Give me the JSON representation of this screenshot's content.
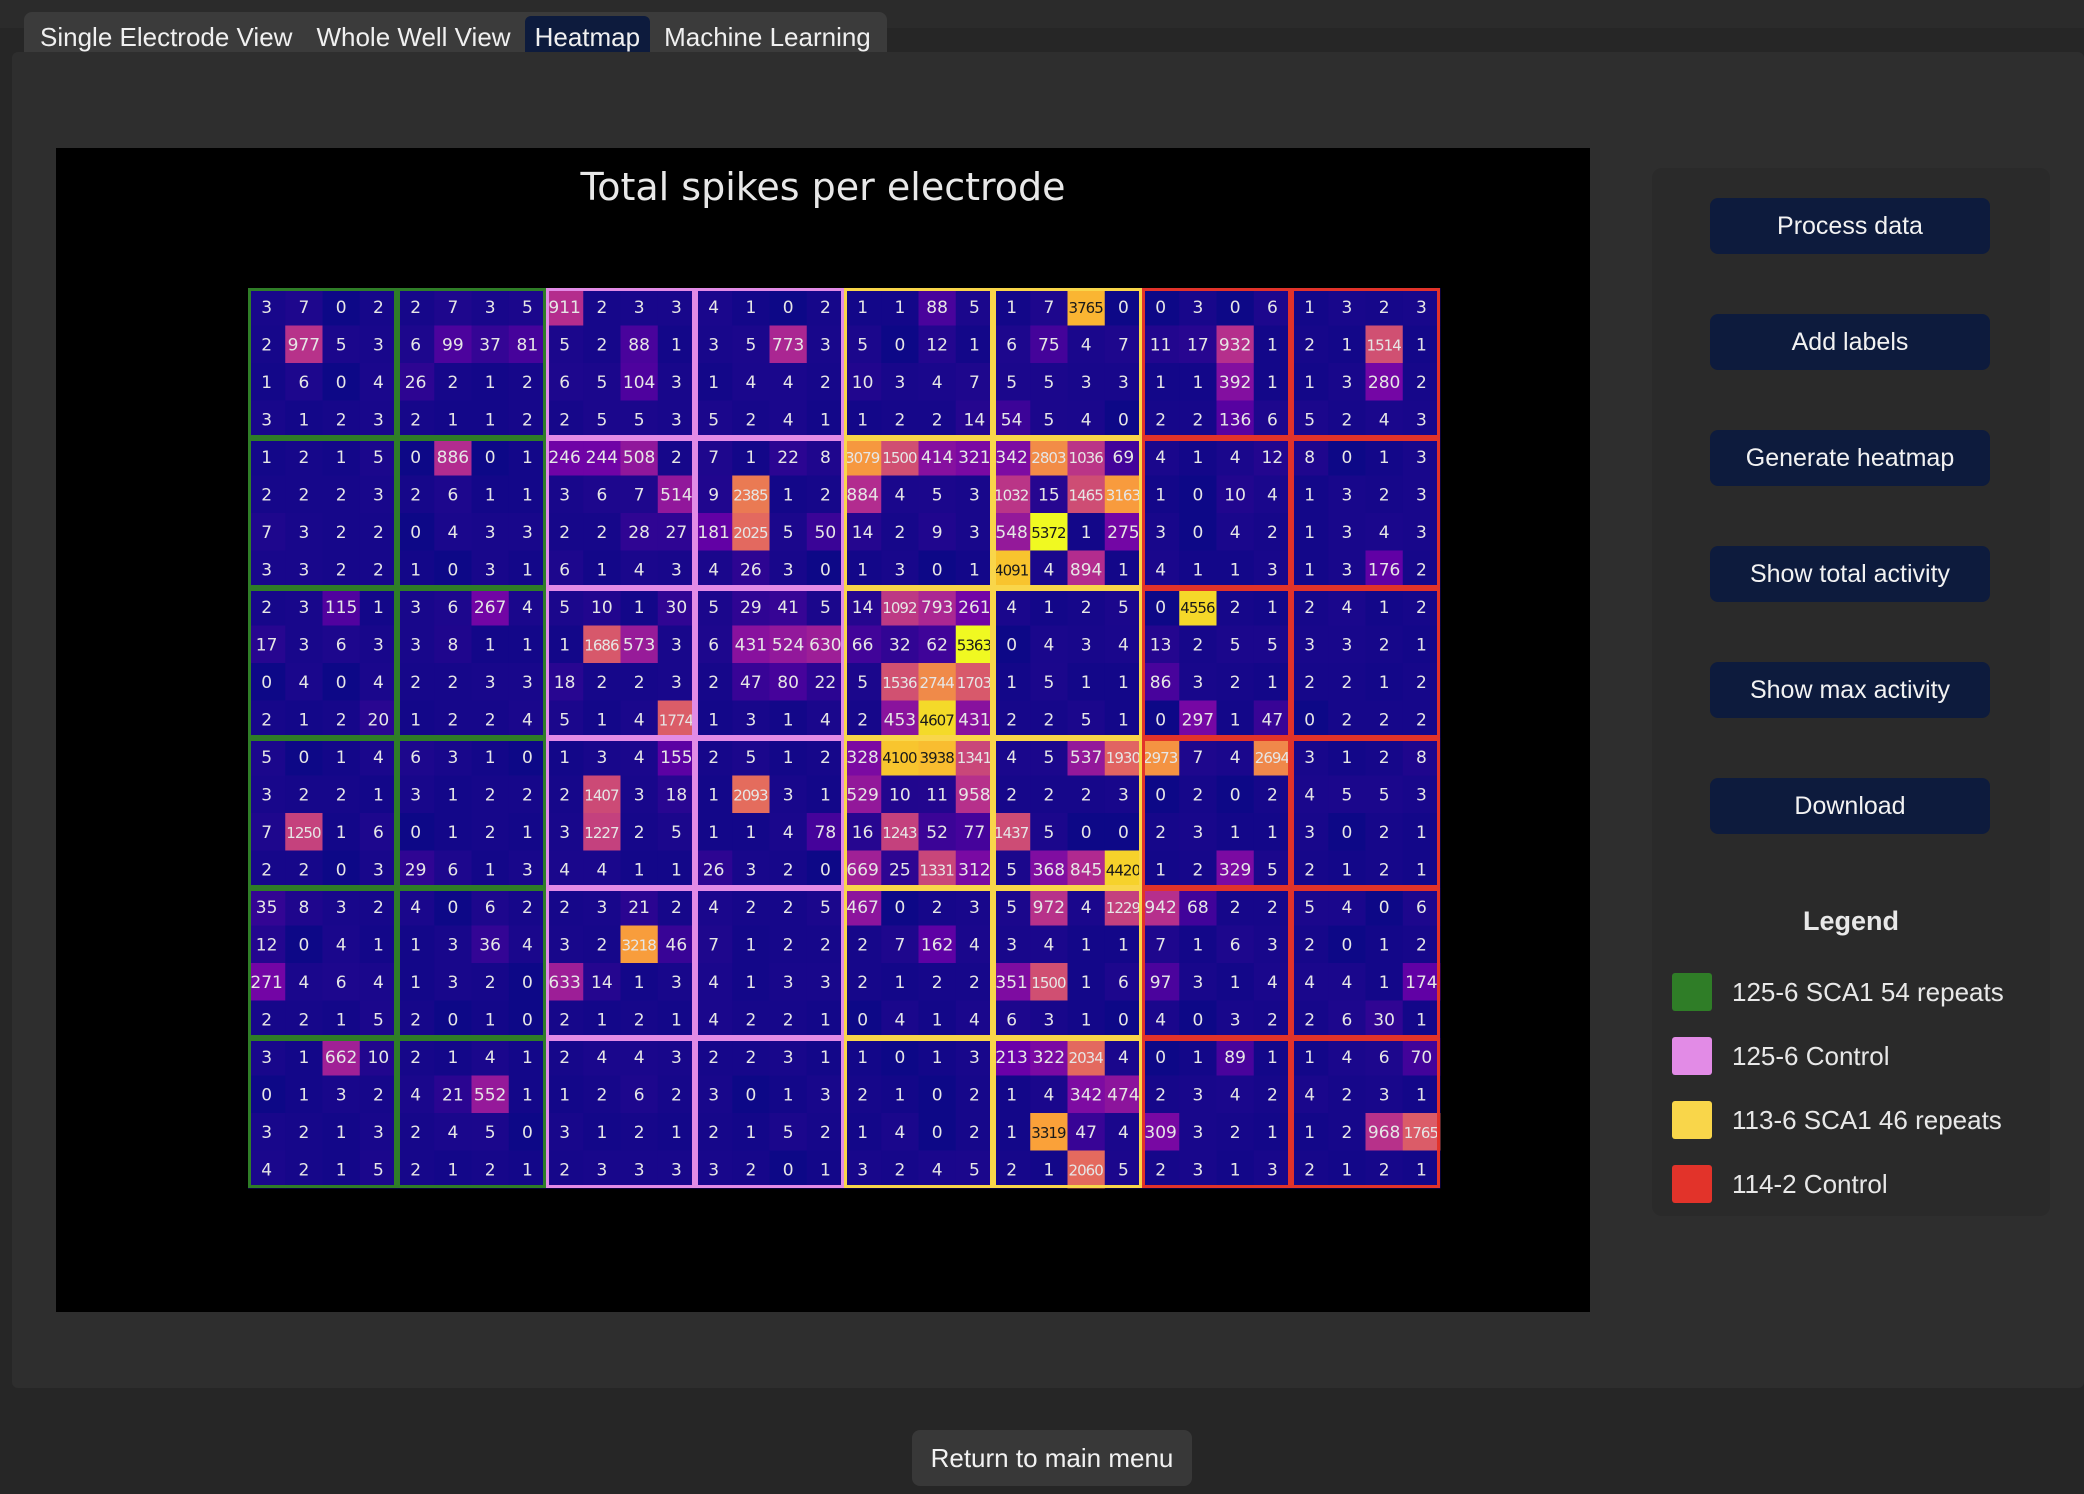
{
  "tabs": [
    {
      "label": "Single Electrode View",
      "active": false
    },
    {
      "label": "Whole Well View",
      "active": false
    },
    {
      "label": "Heatmap",
      "active": true
    },
    {
      "label": "Machine Learning",
      "active": false
    }
  ],
  "buttons": {
    "process": "Process data",
    "add_labels": "Add labels",
    "generate": "Generate heatmap",
    "total": "Show total activity",
    "max": "Show max activity",
    "download": "Download"
  },
  "legend": {
    "title": "Legend",
    "items": [
      {
        "label": "125-6 SCA1 54 repeats",
        "color": "#2f7d27"
      },
      {
        "label": "125-6 Control",
        "color": "#e28be6"
      },
      {
        "label": "113-6 SCA1 46 repeats",
        "color": "#f9d64a"
      },
      {
        "label": "114-2 Control",
        "color": "#e2332a"
      }
    ]
  },
  "return_button": "Return to main menu",
  "chart_data": {
    "type": "heatmap",
    "title": "Total spikes per electrode",
    "color_scale": {
      "min": 0,
      "max": 5372,
      "colors": [
        "#0d0887",
        "#6a00a8",
        "#b12a90",
        "#e16462",
        "#fca636",
        "#f0f921"
      ]
    },
    "well_grid": {
      "rows": 6,
      "cols": 8,
      "electrodes_per_well": [
        4,
        4
      ]
    },
    "column_groups": [
      {
        "group": "125-6 SCA1 54 repeats",
        "color": "#2f7d27"
      },
      {
        "group": "125-6 SCA1 54 repeats",
        "color": "#2f7d27"
      },
      {
        "group": "125-6 Control",
        "color": "#e28be6"
      },
      {
        "group": "125-6 Control",
        "color": "#e28be6"
      },
      {
        "group": "113-6 SCA1 46 repeats",
        "color": "#f9d64a"
      },
      {
        "group": "113-6 SCA1 46 repeats",
        "color": "#f9d64a"
      },
      {
        "group": "114-2 Control",
        "color": "#e2332a"
      },
      {
        "group": "114-2 Control",
        "color": "#e2332a"
      }
    ],
    "values": [
      [
        3,
        7,
        0,
        2,
        2,
        7,
        3,
        5,
        911,
        2,
        3,
        3,
        4,
        1,
        0,
        2,
        1,
        1,
        88,
        5,
        1,
        7,
        3765,
        0,
        0,
        3,
        0,
        6,
        1,
        3,
        2,
        3
      ],
      [
        2,
        977,
        5,
        3,
        6,
        99,
        37,
        81,
        5,
        2,
        88,
        1,
        3,
        5,
        773,
        3,
        5,
        0,
        12,
        1,
        6,
        75,
        4,
        7,
        11,
        17,
        932,
        1,
        2,
        1,
        1514,
        1
      ],
      [
        1,
        6,
        0,
        4,
        26,
        2,
        1,
        2,
        6,
        5,
        104,
        3,
        1,
        4,
        4,
        2,
        10,
        3,
        4,
        7,
        5,
        5,
        3,
        3,
        1,
        1,
        392,
        1,
        1,
        3,
        280,
        2
      ],
      [
        3,
        1,
        2,
        3,
        2,
        1,
        1,
        2,
        2,
        5,
        5,
        3,
        5,
        2,
        4,
        1,
        1,
        2,
        2,
        14,
        54,
        5,
        4,
        0,
        2,
        2,
        136,
        6,
        5,
        2,
        4,
        3
      ],
      [
        1,
        2,
        1,
        5,
        0,
        886,
        0,
        1,
        246,
        244,
        508,
        2,
        7,
        1,
        22,
        8,
        3079,
        1500,
        414,
        321,
        342,
        2803,
        1036,
        69,
        4,
        1,
        4,
        12,
        8,
        0,
        1,
        3
      ],
      [
        2,
        2,
        2,
        3,
        2,
        6,
        1,
        1,
        3,
        6,
        7,
        514,
        9,
        2385,
        1,
        2,
        884,
        4,
        5,
        3,
        1032,
        15,
        1465,
        3163,
        1,
        0,
        10,
        4,
        1,
        3,
        2,
        3
      ],
      [
        7,
        3,
        2,
        2,
        0,
        4,
        3,
        3,
        2,
        2,
        28,
        27,
        181,
        2025,
        5,
        50,
        14,
        2,
        9,
        3,
        548,
        5372,
        1,
        275,
        3,
        0,
        4,
        2,
        1,
        3,
        4,
        3
      ],
      [
        3,
        3,
        2,
        2,
        1,
        0,
        3,
        1,
        6,
        1,
        4,
        3,
        4,
        26,
        3,
        0,
        1,
        3,
        0,
        1,
        4091,
        4,
        894,
        1,
        4,
        1,
        1,
        3,
        1,
        3,
        176,
        2
      ],
      [
        2,
        3,
        115,
        1,
        3,
        6,
        267,
        4,
        5,
        10,
        1,
        30,
        5,
        29,
        41,
        5,
        14,
        1092,
        793,
        261,
        4,
        1,
        2,
        5,
        0,
        4556,
        2,
        1,
        2,
        4,
        1,
        2
      ],
      [
        17,
        3,
        6,
        3,
        3,
        8,
        1,
        1,
        1,
        1686,
        573,
        3,
        6,
        431,
        524,
        630,
        66,
        32,
        62,
        5363,
        0,
        4,
        3,
        4,
        13,
        2,
        5,
        5,
        3,
        3,
        2,
        1
      ],
      [
        0,
        4,
        0,
        4,
        2,
        2,
        3,
        3,
        18,
        2,
        2,
        3,
        2,
        47,
        80,
        22,
        5,
        1536,
        2744,
        1703,
        1,
        5,
        1,
        1,
        86,
        3,
        2,
        1,
        2,
        2,
        1,
        2
      ],
      [
        2,
        1,
        2,
        20,
        1,
        2,
        2,
        4,
        5,
        1,
        4,
        1774,
        1,
        3,
        1,
        4,
        2,
        453,
        4607,
        431,
        2,
        2,
        5,
        1,
        0,
        297,
        1,
        47,
        0,
        2,
        2,
        2
      ],
      [
        5,
        0,
        1,
        4,
        6,
        3,
        1,
        0,
        1,
        3,
        4,
        155,
        2,
        5,
        1,
        2,
        328,
        4100,
        3938,
        1341,
        4,
        5,
        537,
        1930,
        2973,
        7,
        4,
        2694,
        3,
        1,
        2,
        8
      ],
      [
        3,
        2,
        2,
        1,
        3,
        1,
        2,
        2,
        2,
        1407,
        3,
        18,
        1,
        2093,
        3,
        1,
        529,
        10,
        11,
        958,
        2,
        2,
        2,
        3,
        0,
        2,
        0,
        2,
        4,
        5,
        5,
        3
      ],
      [
        7,
        1250,
        1,
        6,
        0,
        1,
        2,
        1,
        3,
        1227,
        2,
        5,
        1,
        1,
        4,
        78,
        16,
        1243,
        52,
        77,
        1437,
        5,
        0,
        0,
        2,
        3,
        1,
        1,
        3,
        0,
        2,
        1
      ],
      [
        2,
        2,
        0,
        3,
        29,
        6,
        1,
        3,
        4,
        4,
        1,
        1,
        26,
        3,
        2,
        0,
        669,
        25,
        1331,
        312,
        5,
        368,
        845,
        4420,
        1,
        2,
        329,
        5,
        2,
        1,
        2,
        1
      ],
      [
        35,
        8,
        3,
        2,
        4,
        0,
        6,
        2,
        2,
        3,
        21,
        2,
        4,
        2,
        2,
        5,
        467,
        0,
        2,
        3,
        5,
        972,
        4,
        1229,
        942,
        68,
        2,
        2,
        5,
        4,
        0,
        6
      ],
      [
        12,
        0,
        4,
        1,
        1,
        3,
        36,
        4,
        3,
        2,
        3218,
        46,
        7,
        1,
        2,
        2,
        2,
        7,
        162,
        4,
        3,
        4,
        1,
        1,
        7,
        1,
        6,
        3,
        2,
        0,
        1,
        2
      ],
      [
        271,
        4,
        6,
        4,
        1,
        3,
        2,
        0,
        633,
        14,
        1,
        3,
        4,
        1,
        3,
        3,
        2,
        1,
        2,
        2,
        351,
        1500,
        1,
        6,
        97,
        3,
        1,
        4,
        4,
        4,
        1,
        174
      ],
      [
        2,
        2,
        1,
        5,
        2,
        0,
        1,
        0,
        2,
        1,
        2,
        1,
        4,
        2,
        2,
        1,
        0,
        4,
        1,
        4,
        6,
        3,
        1,
        0,
        4,
        0,
        3,
        2,
        2,
        6,
        30,
        1
      ],
      [
        3,
        1,
        662,
        10,
        2,
        1,
        4,
        1,
        2,
        4,
        4,
        3,
        2,
        2,
        3,
        1,
        1,
        0,
        1,
        3,
        213,
        322,
        2034,
        4,
        0,
        1,
        89,
        1,
        1,
        4,
        6,
        70
      ],
      [
        0,
        1,
        3,
        2,
        4,
        21,
        552,
        1,
        1,
        2,
        6,
        2,
        3,
        0,
        1,
        3,
        2,
        1,
        0,
        2,
        1,
        4,
        342,
        474,
        2,
        3,
        4,
        2,
        4,
        2,
        3,
        1
      ],
      [
        3,
        2,
        1,
        3,
        2,
        4,
        5,
        0,
        3,
        1,
        2,
        1,
        2,
        1,
        5,
        2,
        1,
        4,
        0,
        2,
        1,
        3319,
        47,
        4,
        309,
        3,
        2,
        1,
        1,
        2,
        968,
        1765
      ],
      [
        4,
        2,
        1,
        5,
        2,
        1,
        2,
        1,
        2,
        3,
        3,
        3,
        3,
        2,
        0,
        1,
        3,
        2,
        4,
        5,
        2,
        1,
        2060,
        5,
        2,
        3,
        1,
        3,
        2,
        1,
        2,
        1
      ]
    ]
  }
}
